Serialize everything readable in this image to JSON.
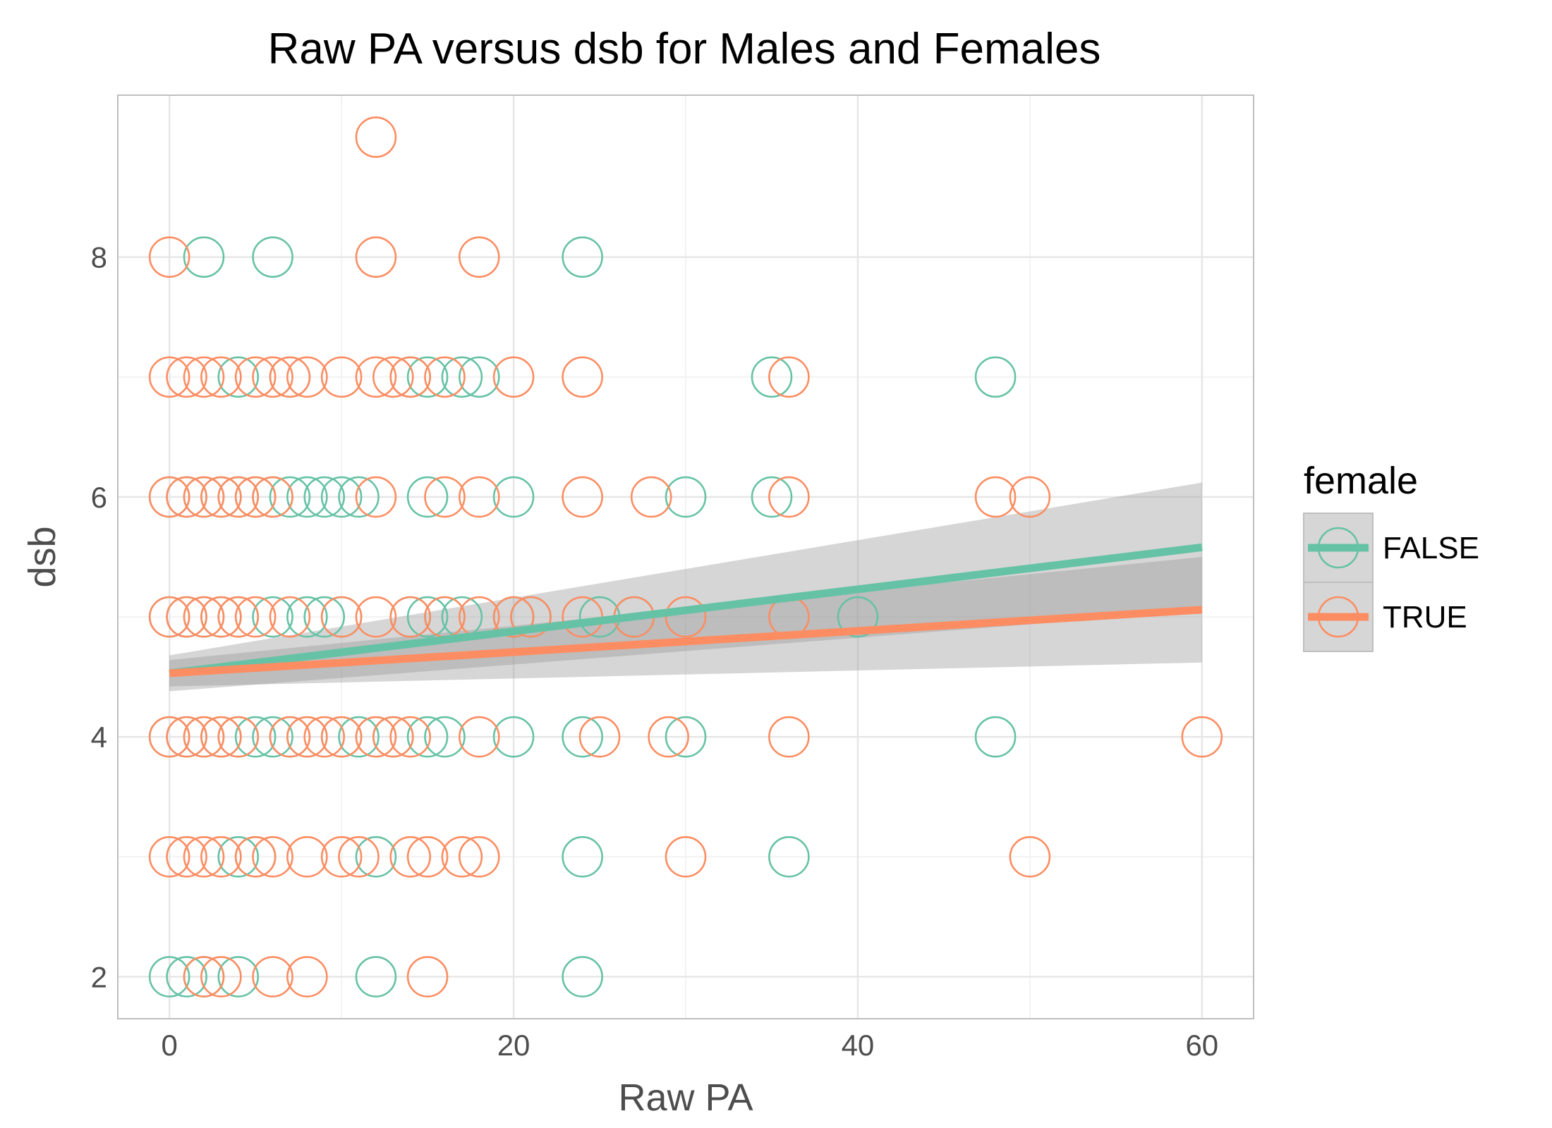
{
  "chart_data": {
    "type": "scatter",
    "title": "Raw PA versus dsb for Males and Females",
    "xlabel": "Raw PA",
    "ylabel": "dsb",
    "xlim": [
      -3,
      63
    ],
    "ylim": [
      1.65,
      9.35
    ],
    "x_ticks": [
      "0",
      "20",
      "40",
      "60"
    ],
    "x_tick_values": [
      0,
      20,
      40,
      60
    ],
    "y_ticks": [
      "2",
      "4",
      "6",
      "8"
    ],
    "y_tick_values": [
      2,
      4,
      6,
      8
    ],
    "grid": true,
    "legend": {
      "title": "female",
      "position": "right",
      "entries": [
        "FALSE",
        "TRUE"
      ]
    },
    "series": [
      {
        "name": "FALSE",
        "color": "#66c2a5",
        "points": [
          [
            2,
            8
          ],
          [
            6,
            8
          ],
          [
            24,
            8
          ],
          [
            4,
            7
          ],
          [
            7,
            7
          ],
          [
            14,
            7
          ],
          [
            15,
            7
          ],
          [
            17,
            7
          ],
          [
            18,
            7
          ],
          [
            35,
            7
          ],
          [
            48,
            7
          ],
          [
            0,
            6
          ],
          [
            1,
            6
          ],
          [
            2,
            6
          ],
          [
            3,
            6
          ],
          [
            4,
            6
          ],
          [
            5,
            6
          ],
          [
            6,
            6
          ],
          [
            7,
            6
          ],
          [
            8,
            6
          ],
          [
            9,
            6
          ],
          [
            10,
            6
          ],
          [
            11,
            6
          ],
          [
            15,
            6
          ],
          [
            20,
            6
          ],
          [
            30,
            6
          ],
          [
            35,
            6
          ],
          [
            0,
            5
          ],
          [
            1,
            5
          ],
          [
            2,
            5
          ],
          [
            3,
            5
          ],
          [
            4,
            5
          ],
          [
            6,
            5
          ],
          [
            8,
            5
          ],
          [
            9,
            5
          ],
          [
            10,
            5
          ],
          [
            14,
            5
          ],
          [
            15,
            5
          ],
          [
            16,
            5
          ],
          [
            17,
            5
          ],
          [
            20,
            5
          ],
          [
            21,
            5
          ],
          [
            25,
            5
          ],
          [
            27,
            5
          ],
          [
            40,
            5
          ],
          [
            0,
            4
          ],
          [
            1,
            4
          ],
          [
            2,
            4
          ],
          [
            3,
            4
          ],
          [
            4,
            4
          ],
          [
            5,
            4
          ],
          [
            6,
            4
          ],
          [
            7,
            4
          ],
          [
            8,
            4
          ],
          [
            10,
            4
          ],
          [
            11,
            4
          ],
          [
            12,
            4
          ],
          [
            13,
            4
          ],
          [
            15,
            4
          ],
          [
            16,
            4
          ],
          [
            20,
            4
          ],
          [
            24,
            4
          ],
          [
            30,
            4
          ],
          [
            48,
            4
          ],
          [
            4,
            3
          ],
          [
            5,
            3
          ],
          [
            12,
            3
          ],
          [
            24,
            3
          ],
          [
            36,
            3
          ],
          [
            0,
            2
          ],
          [
            1,
            2
          ],
          [
            2,
            2
          ],
          [
            4,
            2
          ],
          [
            12,
            2
          ],
          [
            24,
            2
          ]
        ]
      },
      {
        "name": "TRUE",
        "color": "#fc8d62",
        "points": [
          [
            12,
            9
          ],
          [
            0,
            8
          ],
          [
            12,
            8
          ],
          [
            18,
            8
          ],
          [
            0,
            7
          ],
          [
            1,
            7
          ],
          [
            2,
            7
          ],
          [
            3,
            7
          ],
          [
            5,
            7
          ],
          [
            6,
            7
          ],
          [
            7,
            7
          ],
          [
            8,
            7
          ],
          [
            10,
            7
          ],
          [
            12,
            7
          ],
          [
            13,
            7
          ],
          [
            14,
            7
          ],
          [
            16,
            7
          ],
          [
            20,
            7
          ],
          [
            24,
            7
          ],
          [
            36,
            7
          ],
          [
            0,
            6
          ],
          [
            1,
            6
          ],
          [
            2,
            6
          ],
          [
            3,
            6
          ],
          [
            4,
            6
          ],
          [
            5,
            6
          ],
          [
            6,
            6
          ],
          [
            12,
            6
          ],
          [
            16,
            6
          ],
          [
            18,
            6
          ],
          [
            24,
            6
          ],
          [
            28,
            6
          ],
          [
            36,
            6
          ],
          [
            48,
            6
          ],
          [
            50,
            6
          ],
          [
            0,
            5
          ],
          [
            1,
            5
          ],
          [
            2,
            5
          ],
          [
            3,
            5
          ],
          [
            4,
            5
          ],
          [
            5,
            5
          ],
          [
            7,
            5
          ],
          [
            10,
            5
          ],
          [
            12,
            5
          ],
          [
            14,
            5
          ],
          [
            16,
            5
          ],
          [
            18,
            5
          ],
          [
            20,
            5
          ],
          [
            21,
            5
          ],
          [
            24,
            5
          ],
          [
            27,
            5
          ],
          [
            30,
            5
          ],
          [
            36,
            5
          ],
          [
            0,
            4
          ],
          [
            1,
            4
          ],
          [
            2,
            4
          ],
          [
            3,
            4
          ],
          [
            4,
            4
          ],
          [
            7,
            4
          ],
          [
            8,
            4
          ],
          [
            9,
            4
          ],
          [
            10,
            4
          ],
          [
            12,
            4
          ],
          [
            13,
            4
          ],
          [
            14,
            4
          ],
          [
            18,
            4
          ],
          [
            25,
            4
          ],
          [
            29,
            4
          ],
          [
            36,
            4
          ],
          [
            60,
            4
          ],
          [
            0,
            3
          ],
          [
            1,
            3
          ],
          [
            2,
            3
          ],
          [
            3,
            3
          ],
          [
            5,
            3
          ],
          [
            6,
            3
          ],
          [
            8,
            3
          ],
          [
            10,
            3
          ],
          [
            11,
            3
          ],
          [
            14,
            3
          ],
          [
            15,
            3
          ],
          [
            17,
            3
          ],
          [
            18,
            3
          ],
          [
            30,
            3
          ],
          [
            50,
            3
          ],
          [
            2,
            2
          ],
          [
            3,
            2
          ],
          [
            6,
            2
          ],
          [
            8,
            2
          ],
          [
            15,
            2
          ]
        ],
        "trend_line": [
          [
            0,
            4.53
          ],
          [
            60,
            5.06
          ]
        ]
      }
    ],
    "trend_lines": [
      {
        "series": "FALSE",
        "points": [
          [
            0,
            4.53
          ],
          [
            60,
            5.58
          ]
        ],
        "ci": [
          [
            0,
            4.38,
            4.68
          ],
          [
            60,
            5.05,
            6.12
          ]
        ]
      },
      {
        "series": "TRUE",
        "points": [
          [
            0,
            4.53
          ],
          [
            60,
            5.06
          ]
        ],
        "ci": [
          [
            0,
            4.42,
            4.64
          ],
          [
            60,
            4.62,
            5.5
          ]
        ]
      }
    ]
  }
}
